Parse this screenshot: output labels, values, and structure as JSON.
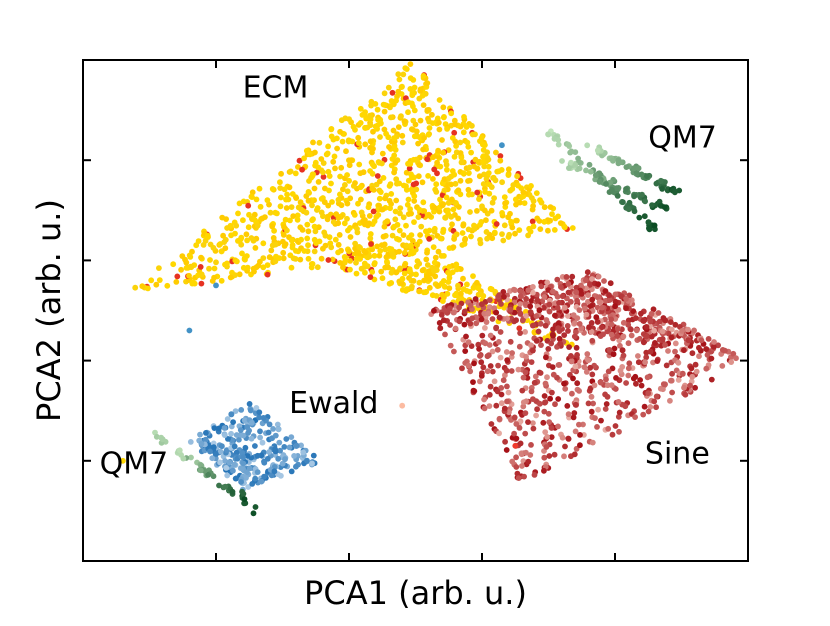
{
  "chart_data": {
    "type": "scatter",
    "title": "",
    "xlabel": "PCA1 (arb. u.)",
    "ylabel": "PCA2 (arb. u.)",
    "xlim": [
      0,
      10
    ],
    "ylim": [
      0,
      10
    ],
    "xticks": [
      2,
      4,
      6,
      8
    ],
    "yticks": [
      2,
      4,
      6,
      8
    ],
    "tick_labels_shown": false,
    "grid": false,
    "legend": "none",
    "series": [
      {
        "name": "ECM",
        "color": "#ffd700",
        "accent": "#e63222",
        "shape": "triangle",
        "apex": [
          4.95,
          9.95
        ],
        "base_left": [
          0.6,
          5.3
        ],
        "base_right": [
          7.4,
          6.6
        ],
        "extra_regions": [
          [
            [
              5.0,
              6.5
            ],
            [
              7.5,
              4.2
            ],
            [
              3.5,
              6.0
            ]
          ]
        ],
        "count": 1300
      },
      {
        "name": "Sine",
        "color": "#ef3b2c",
        "color_range": [
          "#fee0d2",
          "#a50f15"
        ],
        "shape": "quad",
        "vertices": [
          [
            5.2,
            5.0
          ],
          [
            7.6,
            5.8
          ],
          [
            10.0,
            4.0
          ],
          [
            6.6,
            1.5
          ]
        ],
        "count": 1000
      },
      {
        "name": "Ewald",
        "color": "#4292c6",
        "color_range": [
          "#deebf7",
          "#2171b5"
        ],
        "shape": "quad",
        "vertices": [
          [
            1.6,
            2.4
          ],
          [
            2.5,
            3.2
          ],
          [
            3.6,
            2.0
          ],
          [
            2.4,
            1.4
          ]
        ],
        "count": 260
      },
      {
        "name": "QM7 (upper)",
        "color": "#238b45",
        "color_range": [
          "#c7e9c0",
          "#00441b"
        ],
        "shape": "stripes",
        "stripes": [
          [
            [
              7.0,
              8.6
            ],
            [
              8.6,
              6.6
            ]
          ],
          [
            [
              7.2,
              8.0
            ],
            [
              8.8,
              7.0
            ]
          ],
          [
            [
              7.6,
              8.3
            ],
            [
              9.0,
              7.3
            ]
          ]
        ],
        "count": 170
      },
      {
        "name": "QM7 (lower)",
        "color": "#41ab5d",
        "color_range": [
          "#c7e9c0",
          "#00441b"
        ],
        "shape": "stripes",
        "stripes": [
          [
            [
              1.0,
              2.6
            ],
            [
              2.6,
              1.0
            ]
          ],
          [
            [
              1.4,
              2.2
            ],
            [
              2.5,
              1.2
            ]
          ]
        ],
        "count": 45
      }
    ],
    "annotations": [
      {
        "text": "ECM",
        "x": 2.4,
        "y": 9.25
      },
      {
        "text": "QM7",
        "x": 8.5,
        "y": 8.25
      },
      {
        "text": "Ewald",
        "x": 3.1,
        "y": 2.95
      },
      {
        "text": "QM7",
        "x": 0.25,
        "y": 1.75
      },
      {
        "text": "Sine",
        "x": 8.45,
        "y": 1.95
      }
    ]
  }
}
